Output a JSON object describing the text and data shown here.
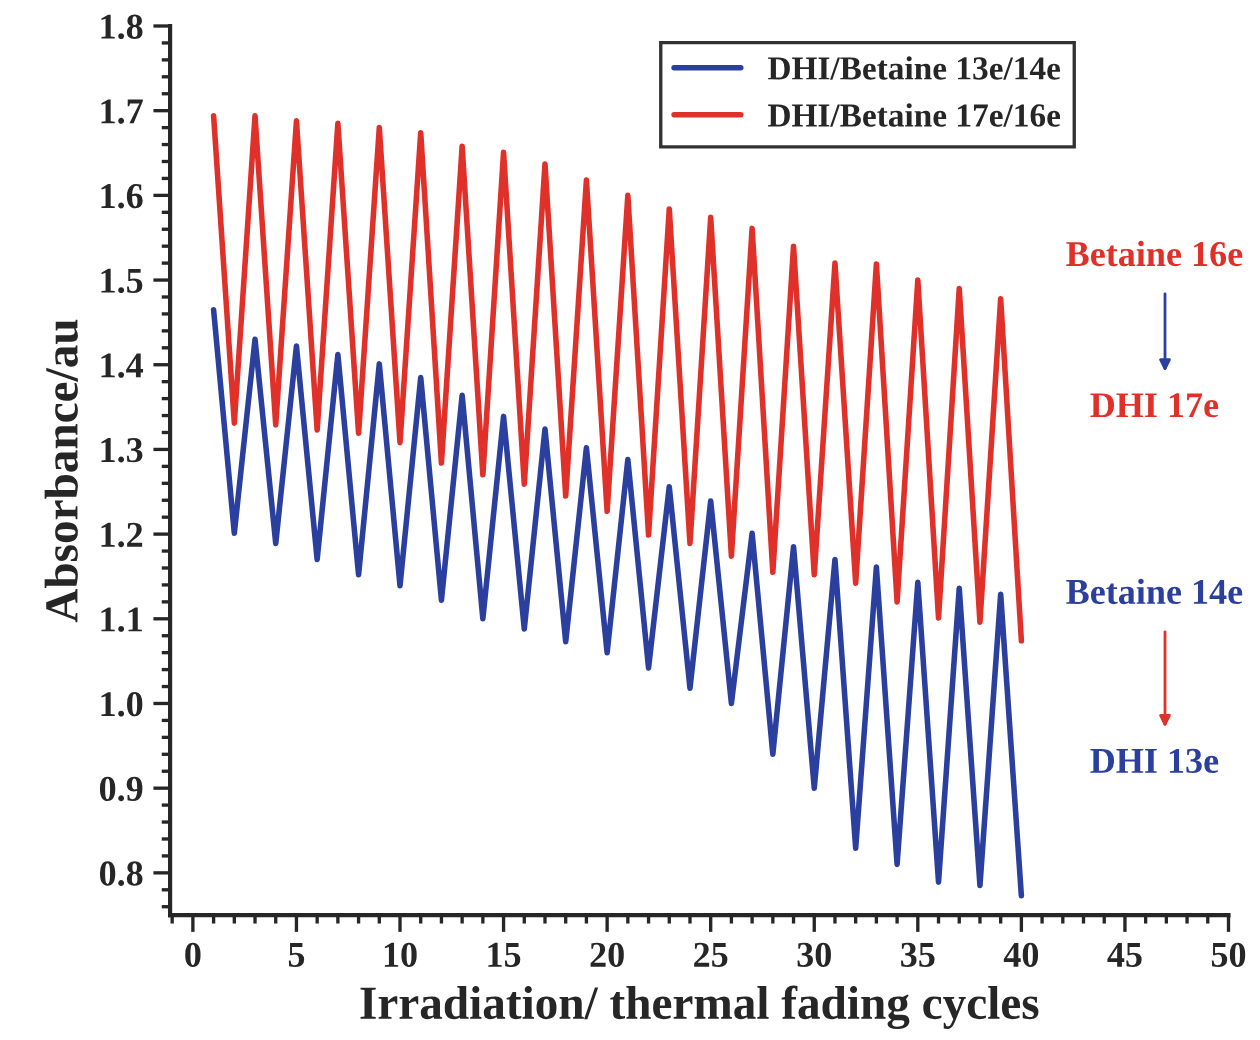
{
  "chart_data": {
    "type": "line",
    "xlabel": "Irradiation/ thermal fading cycles",
    "ylabel": "Absorbance/au",
    "x": [
      1,
      2,
      3,
      4,
      5,
      6,
      7,
      8,
      9,
      10,
      11,
      12,
      13,
      14,
      15,
      16,
      17,
      18,
      19,
      20,
      21,
      22,
      23,
      24,
      25,
      26,
      27,
      28,
      29,
      30,
      31,
      32,
      33,
      34,
      35,
      36,
      37,
      38,
      39,
      40
    ],
    "series": [
      {
        "name": "DHI/Betaine 13e/14e",
        "color": "#2b3f9e",
        "values": [
          1.465,
          1.201,
          1.43,
          1.189,
          1.422,
          1.17,
          1.412,
          1.152,
          1.401,
          1.139,
          1.385,
          1.122,
          1.364,
          1.1,
          1.339,
          1.088,
          1.324,
          1.073,
          1.302,
          1.06,
          1.288,
          1.042,
          1.256,
          1.018,
          1.239,
          1.0,
          1.201,
          0.94,
          1.185,
          0.9,
          1.17,
          0.829,
          1.161,
          0.81,
          1.143,
          0.789,
          1.136,
          0.785,
          1.129,
          0.773
        ]
      },
      {
        "name": "DHI/Betaine 17e/16e",
        "color": "#e0302a",
        "values": [
          1.694,
          1.331,
          1.694,
          1.329,
          1.688,
          1.323,
          1.685,
          1.319,
          1.68,
          1.308,
          1.674,
          1.284,
          1.658,
          1.27,
          1.651,
          1.259,
          1.637,
          1.245,
          1.618,
          1.227,
          1.6,
          1.199,
          1.584,
          1.189,
          1.574,
          1.174,
          1.561,
          1.155,
          1.54,
          1.152,
          1.52,
          1.142,
          1.519,
          1.12,
          1.5,
          1.101,
          1.49,
          1.096,
          1.478,
          1.074
        ]
      }
    ],
    "xlim": [
      -1.1,
      50
    ],
    "xticks": [
      0,
      5,
      10,
      15,
      20,
      25,
      30,
      35,
      40,
      45,
      50
    ],
    "ylim": [
      0.75,
      1.8
    ],
    "yticks": [
      0.8,
      0.9,
      {
        "value": 1,
        "label": "1.0"
      },
      1.1,
      1.2,
      1.3,
      1.4,
      1.5,
      1.6,
      1.7,
      1.8
    ],
    "grid": false,
    "legend": "top right",
    "marker": "none",
    "line_style": "solid",
    "annotations": [
      "Betaine 16e",
      "DHI 17e",
      "Betaine 14e",
      "DHI 13e"
    ]
  }
}
